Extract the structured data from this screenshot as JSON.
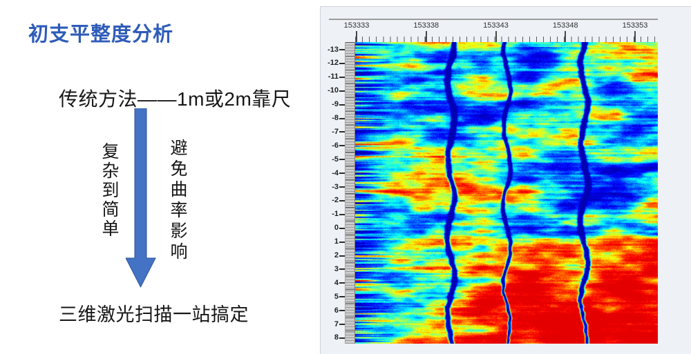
{
  "slide": {
    "title": "初支平整度分析",
    "traditional_method": "传统方法——1m或2m靠尺",
    "arrow_left_label": "复杂到简单",
    "arrow_right_label": "避免曲率影响",
    "conclusion": "三维激光扫描一站搞定",
    "accent_color": "#2e5cb8",
    "arrow_color": "#4472c4",
    "arrow_outline_color": "#2d5699"
  },
  "scan_panel": {
    "x_axis_labels": [
      "153333",
      "153338",
      "153343",
      "153348",
      "153353"
    ],
    "y_axis_labels": [
      "-13",
      "-12",
      "-11",
      "-10",
      "-9",
      "-8",
      "-7",
      "-6",
      "-5",
      "-4",
      "-3",
      "-2",
      "-1",
      "0",
      "1",
      "2",
      "3",
      "4",
      "5",
      "6",
      "7",
      "8"
    ],
    "colormap": "jet",
    "panel_bg": "#eef1f6",
    "ruler_color": "#9b9b9b",
    "tick_color": "#474747",
    "label_color": "#303030",
    "heat_colors": {
      "cold": "#0012e0",
      "cool": "#00c8ff",
      "warm": "#ffb400",
      "hot": "#ff3c00"
    }
  }
}
